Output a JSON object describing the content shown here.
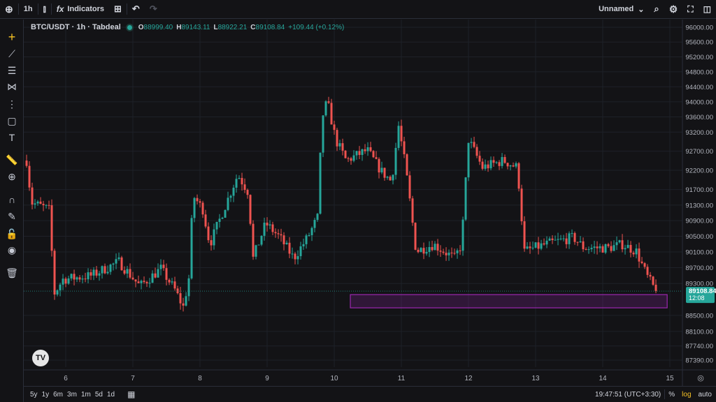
{
  "toolbar": {
    "interval": "1h",
    "indicators": "Indicators",
    "layout_name": "Unnamed"
  },
  "legend": {
    "symbol": "BTC/USDT · 1h · Tabdeal",
    "o_label": "O",
    "o": "88999.40",
    "h_label": "H",
    "h": "89143.11",
    "l_label": "L",
    "l": "88922.21",
    "c_label": "C",
    "c": "89108.84",
    "change": "+109.44 (+0.12%)"
  },
  "left_tools": [
    "crosshair-icon",
    "trend-line-icon",
    "fib-icon",
    "pattern-icon",
    "projection-icon",
    "rectangle-icon",
    "text-icon",
    "ruler-icon",
    "zoom-in-icon",
    "magnet-icon",
    "lock-drawing-icon",
    "lock-icon",
    "eye-icon",
    "trash-icon"
  ],
  "bottom": {
    "ranges": [
      "5y",
      "1y",
      "6m",
      "3m",
      "1m",
      "5d",
      "1d"
    ],
    "time": "19:47:51 (UTC+3:30)",
    "percent": "%",
    "log": "log",
    "auto": "auto"
  },
  "colors": {
    "up": "#26a69a",
    "down": "#ef5350",
    "zone": "#9c27b0",
    "accent": "#f7c325"
  },
  "chart_data": {
    "type": "candlestick",
    "scale": "log",
    "grid": true,
    "price_ticks": [
      "96000.00",
      "95600.00",
      "95200.00",
      "94800.00",
      "94400.00",
      "94000.00",
      "93600.00",
      "93200.00",
      "92700.00",
      "92200.00",
      "91700.00",
      "91300.00",
      "90900.00",
      "90500.00",
      "90100.00",
      "89700.00",
      "89300.00",
      "88500.00",
      "88100.00",
      "87740.00",
      "87390.00"
    ],
    "date_ticks": [
      "6",
      "7",
      "8",
      "9",
      "10",
      "11",
      "12",
      "13",
      "14",
      "15"
    ],
    "ylim": [
      87390,
      96000
    ],
    "xlim": [
      5.4,
      15.15
    ],
    "last_price": "89108.84",
    "countdown": "12:08",
    "zone": {
      "from_day": 10.24,
      "to_day": 14.96,
      "high": 89021,
      "low": 88689
    },
    "close_path": [
      [
        5.417,
        92454
      ],
      [
        5.49,
        91367
      ],
      [
        5.75,
        91188
      ],
      [
        5.833,
        89056
      ],
      [
        5.958,
        89408
      ],
      [
        6.375,
        89496
      ],
      [
        6.792,
        89850
      ],
      [
        7.104,
        89232
      ],
      [
        7.417,
        89673
      ],
      [
        7.625,
        89144
      ],
      [
        7.75,
        88707
      ],
      [
        7.833,
        89408
      ],
      [
        7.896,
        91547
      ],
      [
        8.042,
        91188
      ],
      [
        8.146,
        90293
      ],
      [
        8.354,
        91188
      ],
      [
        8.563,
        92090
      ],
      [
        8.719,
        91637
      ],
      [
        8.792,
        89939
      ],
      [
        8.979,
        90829
      ],
      [
        9.188,
        90471
      ],
      [
        9.396,
        89939
      ],
      [
        9.604,
        90471
      ],
      [
        9.76,
        91008
      ],
      [
        9.813,
        93554
      ],
      [
        9.896,
        94016
      ],
      [
        10.021,
        93002
      ],
      [
        10.177,
        92454
      ],
      [
        10.49,
        92727
      ],
      [
        10.698,
        92181
      ],
      [
        10.854,
        91908
      ],
      [
        10.958,
        93369
      ],
      [
        11.063,
        92271
      ],
      [
        11.219,
        90115
      ],
      [
        11.479,
        90293
      ],
      [
        11.792,
        89939
      ],
      [
        11.896,
        90293
      ],
      [
        12.0,
        93002
      ],
      [
        12.208,
        92271
      ],
      [
        12.521,
        92454
      ],
      [
        12.729,
        92271
      ],
      [
        12.833,
        90115
      ],
      [
        13.146,
        90293
      ],
      [
        13.563,
        90471
      ],
      [
        13.719,
        90204
      ],
      [
        14.083,
        90204
      ],
      [
        14.292,
        90293
      ],
      [
        14.5,
        90115
      ],
      [
        14.656,
        89496
      ],
      [
        14.792,
        89108
      ]
    ]
  }
}
